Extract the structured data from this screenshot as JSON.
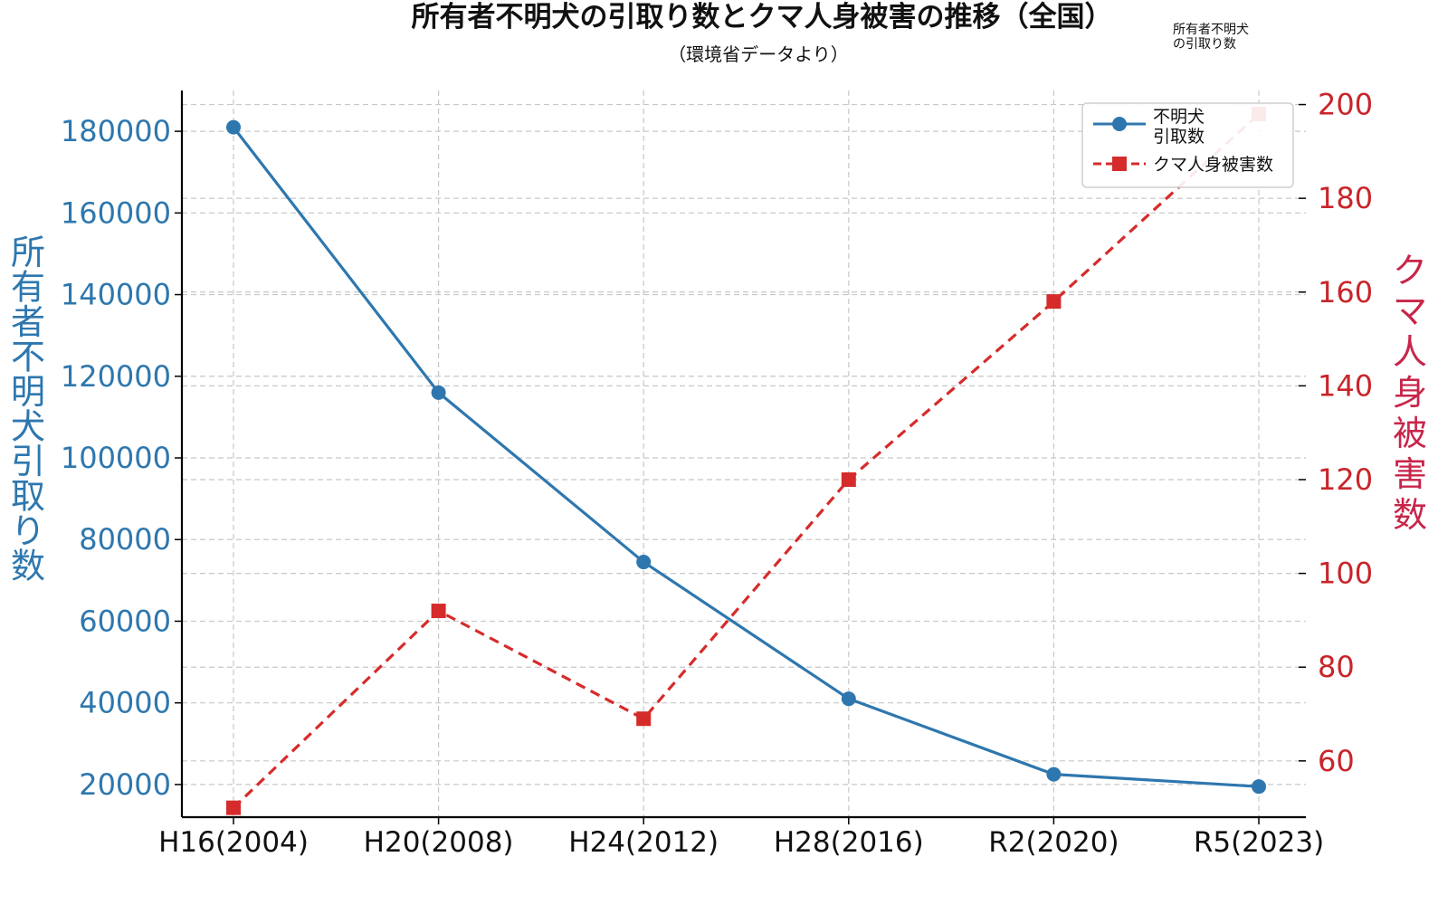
{
  "chart_data": {
    "type": "line",
    "title": "所有者不明犬の引取り数とクマ人身被害の推移（全国）",
    "subtitle": "（環境省データより）",
    "corner_note": [
      "所有者不明犬",
      "の引取り数"
    ],
    "categories": [
      "H16(2004)",
      "H20(2008)",
      "H24(2012)",
      "H28(2016)",
      "R2(2020)",
      "R5(2023)"
    ],
    "ylabel_left": "所有者不明犬引取り数",
    "ylabel_right": "クマ人身被害数",
    "ylim_left": [
      12000,
      190000
    ],
    "ylim_right": [
      48,
      203
    ],
    "yticks_left": [
      20000,
      40000,
      60000,
      80000,
      100000,
      120000,
      140000,
      160000,
      180000
    ],
    "yticks_right": [
      60,
      80,
      100,
      120,
      140,
      160,
      180,
      200
    ],
    "series": [
      {
        "name": [
          "不明犬",
          "引取数"
        ],
        "axis": "left",
        "color": "#2e77ae",
        "style": "solid",
        "marker": "circle",
        "values": [
          181000,
          116000,
          74500,
          41000,
          22500,
          19500
        ]
      },
      {
        "name": "クマ人身被害数",
        "axis": "right",
        "color": "#d62b2b",
        "style": "dashed",
        "marker": "square",
        "values": [
          50,
          92,
          69,
          120,
          158,
          198
        ]
      }
    ],
    "grid": true,
    "legend": "top-right"
  }
}
